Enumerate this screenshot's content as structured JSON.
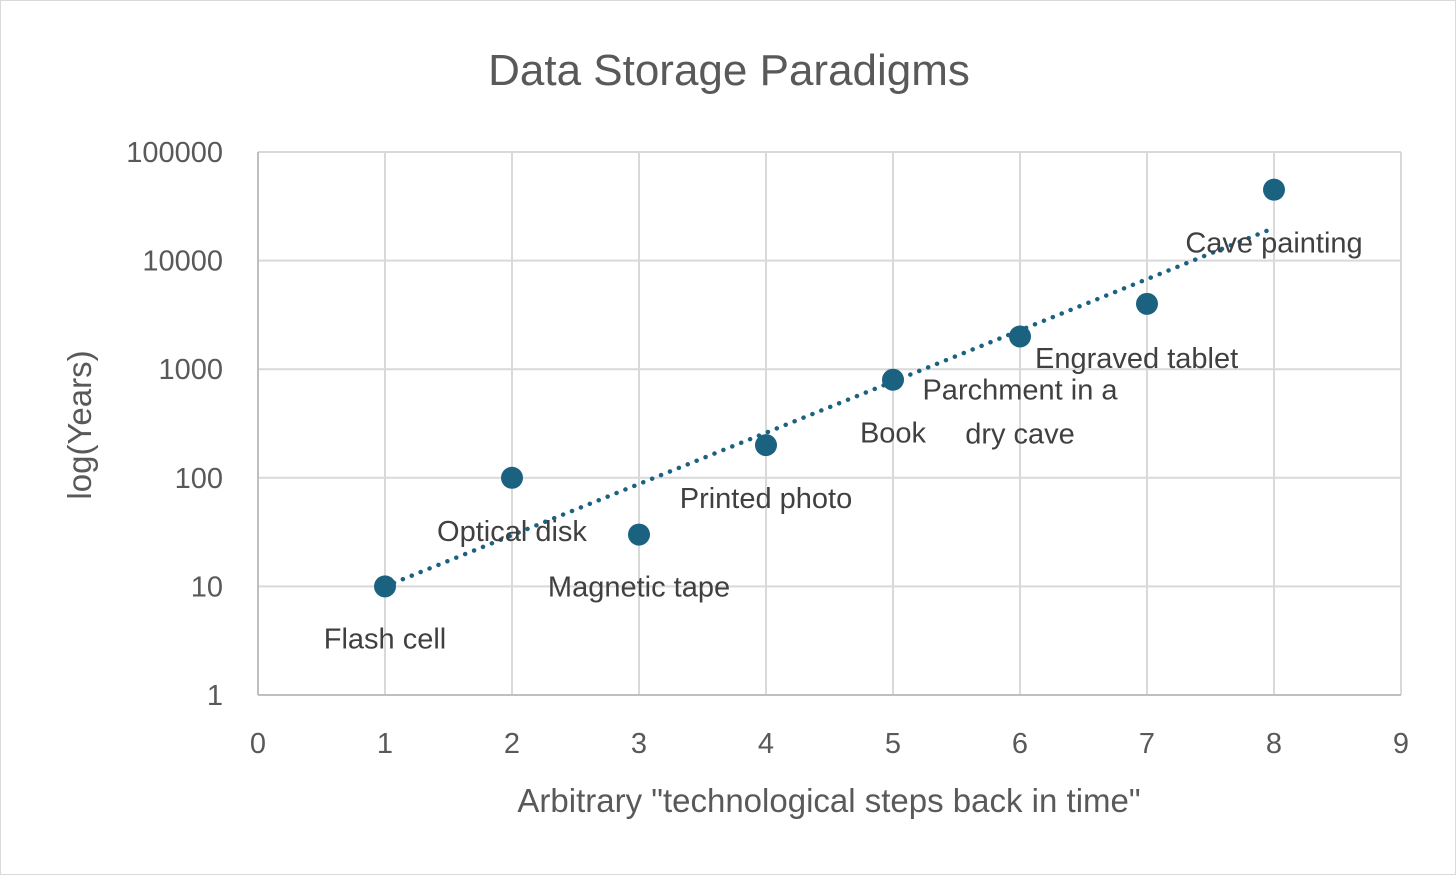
{
  "chart_data": {
    "type": "scatter",
    "title": "Data Storage Paradigms",
    "xlabel": "Arbitrary \"technological steps back in time\"",
    "ylabel": "log(Years)",
    "xlim": [
      0,
      9
    ],
    "ylim": [
      1,
      100000
    ],
    "yscale": "log",
    "x_ticks": [
      "0",
      "1",
      "2",
      "3",
      "4",
      "5",
      "6",
      "7",
      "8",
      "9"
    ],
    "y_ticks": [
      "1",
      "10",
      "100",
      "1000",
      "10000",
      "100000"
    ],
    "grid": true,
    "legend": "none",
    "marker_color": "#1b6281",
    "trendline": {
      "type": "exponential",
      "style": "dotted",
      "color": "#1b6281",
      "from": [
        1,
        10
      ],
      "to": [
        8,
        20000
      ]
    },
    "points": [
      {
        "x": 1,
        "y": 10,
        "label": "Flash cell"
      },
      {
        "x": 2,
        "y": 100,
        "label": "Optical disk"
      },
      {
        "x": 3,
        "y": 30,
        "label": "Magnetic tape"
      },
      {
        "x": 4,
        "y": 200,
        "label": "Printed photo"
      },
      {
        "x": 5,
        "y": 800,
        "label": "Book"
      },
      {
        "x": 6,
        "y": 2000,
        "label": "Parchment in a\ndry cave"
      },
      {
        "x": 7,
        "y": 4000,
        "label": "Engraved tablet"
      },
      {
        "x": 8,
        "y": 45000,
        "label": "Cave painting"
      }
    ]
  }
}
